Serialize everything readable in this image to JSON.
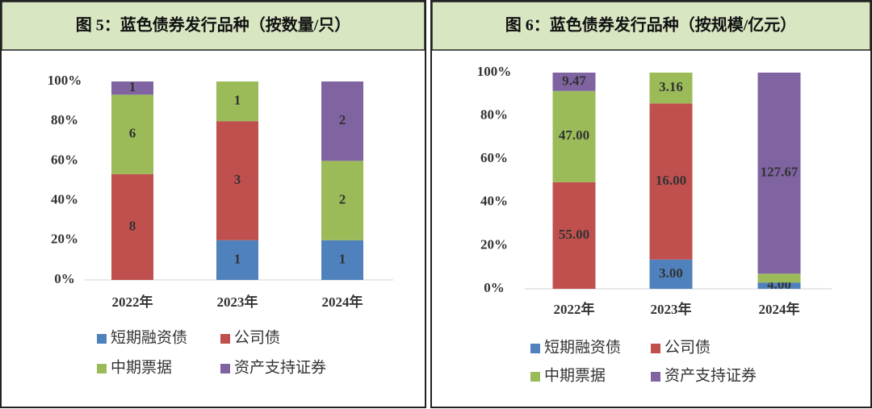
{
  "chart_data": [
    {
      "type": "bar",
      "stacking": "percent",
      "title": "图 5：蓝色债券发行品种（按数量/只）",
      "categories": [
        "2022年",
        "2023年",
        "2024年"
      ],
      "series": [
        {
          "name": "短期融资债",
          "color": "#4f81bd",
          "values": [
            0,
            1,
            1
          ]
        },
        {
          "name": "公司债",
          "color": "#c0504d",
          "values": [
            8,
            3,
            0
          ]
        },
        {
          "name": "中期票据",
          "color": "#9bbb59",
          "values": [
            6,
            1,
            2
          ]
        },
        {
          "name": "资产支持证券",
          "color": "#8064a2",
          "values": [
            1,
            0,
            2
          ]
        }
      ],
      "ylim": [
        0,
        100
      ],
      "yticks": [
        {
          "value": 0,
          "label": "0%"
        },
        {
          "value": 20,
          "label": "20%"
        },
        {
          "value": 40,
          "label": "40%"
        },
        {
          "value": 60,
          "label": "60%"
        },
        {
          "value": 80,
          "label": "80%"
        },
        {
          "value": 100,
          "label": "100%"
        }
      ]
    },
    {
      "type": "bar",
      "stacking": "percent",
      "title": "图 6：蓝色债券发行品种（按规模/亿元）",
      "categories": [
        "2022年",
        "2023年",
        "2024年"
      ],
      "series": [
        {
          "name": "短期融资债",
          "color": "#4f81bd",
          "values": [
            0,
            3,
            4
          ],
          "value_labels": [
            null,
            "3.00",
            "4.00"
          ]
        },
        {
          "name": "公司债",
          "color": "#c0504d",
          "values": [
            55,
            16,
            0
          ],
          "value_labels": [
            "55.00",
            "16.00",
            null
          ]
        },
        {
          "name": "中期票据",
          "color": "#9bbb59",
          "values": [
            47,
            3.16,
            5.6
          ],
          "value_labels": [
            "47.00",
            "3.16",
            "5.60"
          ]
        },
        {
          "name": "资产支持证券",
          "color": "#8064a2",
          "values": [
            9.47,
            0,
            127.67
          ],
          "value_labels": [
            "9.47",
            null,
            "127.67"
          ]
        }
      ],
      "ylim": [
        0,
        100
      ],
      "yticks": [
        {
          "value": 0,
          "label": "0%"
        },
        {
          "value": 20,
          "label": "20%"
        },
        {
          "value": 40,
          "label": "40%"
        },
        {
          "value": 60,
          "label": "60%"
        },
        {
          "value": 80,
          "label": "80%"
        },
        {
          "value": 100,
          "label": "100%"
        }
      ]
    }
  ]
}
